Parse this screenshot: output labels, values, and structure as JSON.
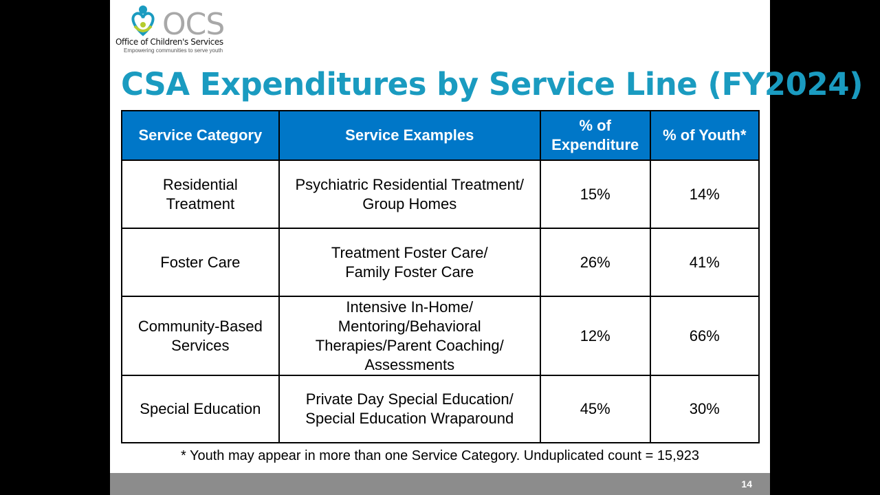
{
  "logo": {
    "acronym": "OCS",
    "org": "Office of Children's Services",
    "tagline": "Empowering communities to serve youth"
  },
  "title": "CSA Expenditures by Service Line (FY2024)",
  "table": {
    "headers": [
      "Service Category",
      "Service Examples",
      "% of Expenditure",
      "% of Youth*"
    ],
    "rows": [
      [
        "Residential Treatment",
        "Psychiatric Residential Treatment/ Group Homes",
        "15%",
        "14%"
      ],
      [
        "Foster Care",
        "Treatment Foster Care/ Family Foster Care",
        "26%",
        "41%"
      ],
      [
        "Community-Based Services",
        "Intensive In-Home/ Mentoring/Behavioral Therapies/Parent Coaching/ Assessments",
        "12%",
        "66%"
      ],
      [
        "Special Education",
        "Private Day Special Education/ Special Education Wraparound",
        "45%",
        "30%"
      ]
    ]
  },
  "footnote": "* Youth may appear in more than one Service Category.  Unduplicated count = 15,923",
  "page_number": "14"
}
